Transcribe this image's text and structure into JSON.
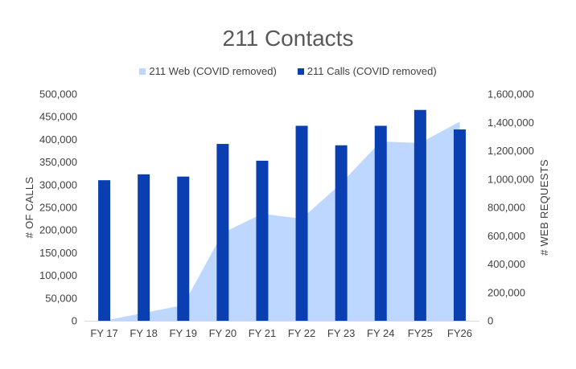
{
  "chart_data": {
    "type": "bar",
    "title": "211 Contacts",
    "categories": [
      "FY 17",
      "FY 18",
      "FY 19",
      "FY 20",
      "FY 21",
      "FY 22",
      "FY 23",
      "FY 24",
      "FY25",
      "FY26"
    ],
    "series": [
      {
        "name": "211 Web (COVID removed)",
        "type": "area",
        "axis": "right",
        "color": "#bdd7ff",
        "values": [
          0,
          55000,
          110000,
          620000,
          755000,
          720000,
          970000,
          1265000,
          1255000,
          1405000
        ]
      },
      {
        "name": "211 Calls (COVID removed)",
        "type": "bar",
        "axis": "left",
        "color": "#0a3fb2",
        "values": [
          310000,
          323000,
          318000,
          390000,
          353000,
          430000,
          387000,
          430000,
          465000,
          422000
        ]
      }
    ],
    "ylabel": "# OF CALLS",
    "y2label": "# WEB REQUESTS",
    "ylim": [
      0,
      500000
    ],
    "y2lim": [
      0,
      1600000
    ],
    "yticks": [
      "0",
      "50,000",
      "100,000",
      "150,000",
      "200,000",
      "250,000",
      "300,000",
      "350,000",
      "400,000",
      "450,000",
      "500,000"
    ],
    "y2ticks": [
      "0",
      "200,000",
      "400,000",
      "600,000",
      "800,000",
      "1,000,000",
      "1,200,000",
      "1,400,000",
      "1,600,000"
    ],
    "grid": false,
    "legend": "top"
  }
}
